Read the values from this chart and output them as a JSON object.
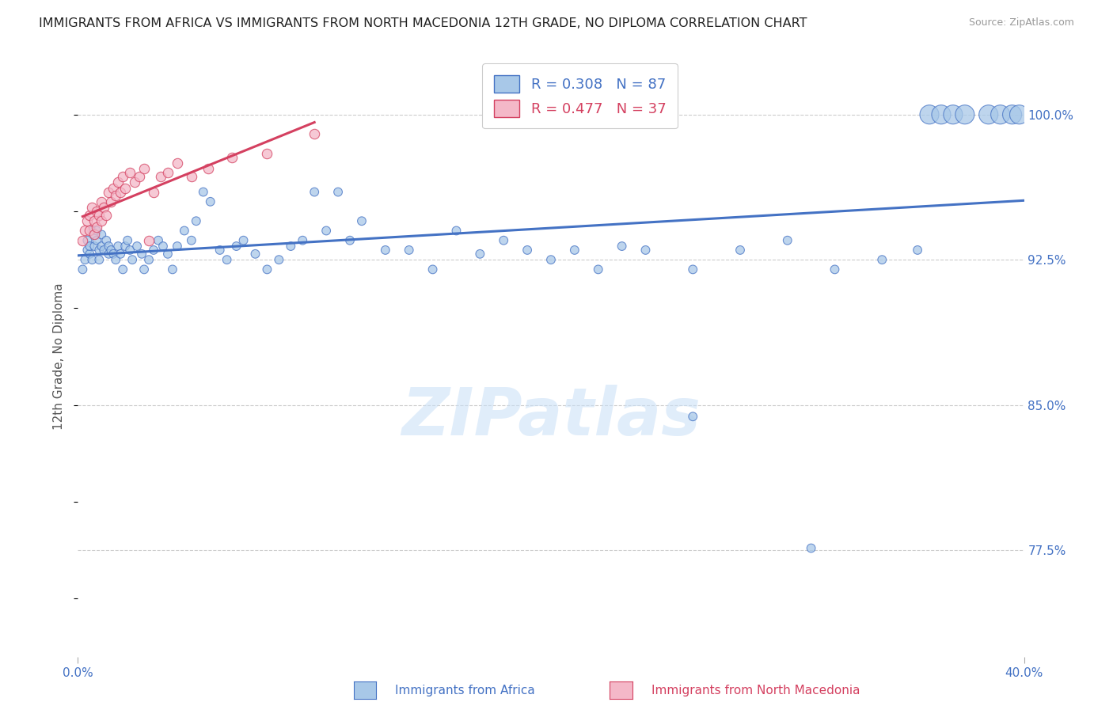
{
  "title": "IMMIGRANTS FROM AFRICA VS IMMIGRANTS FROM NORTH MACEDONIA 12TH GRADE, NO DIPLOMA CORRELATION CHART",
  "source": "Source: ZipAtlas.com",
  "ylabel": "12th Grade, No Diploma",
  "ytick_labels": [
    "100.0%",
    "92.5%",
    "85.0%",
    "77.5%"
  ],
  "ytick_values": [
    1.0,
    0.925,
    0.85,
    0.775
  ],
  "xlim": [
    0.0,
    0.4
  ],
  "ylim": [
    0.72,
    1.03
  ],
  "africa_R": 0.308,
  "africa_N": 87,
  "macedonia_R": 0.477,
  "macedonia_N": 37,
  "africa_color": "#a8c8e8",
  "africa_edge_color": "#4472c4",
  "macedonia_color": "#f4b8c8",
  "macedonia_edge_color": "#d44060",
  "africa_line_color": "#4472c4",
  "macedonia_line_color": "#d44060",
  "africa_x": [
    0.002,
    0.003,
    0.004,
    0.004,
    0.005,
    0.005,
    0.006,
    0.006,
    0.007,
    0.007,
    0.008,
    0.008,
    0.009,
    0.009,
    0.01,
    0.01,
    0.011,
    0.012,
    0.013,
    0.013,
    0.014,
    0.015,
    0.016,
    0.017,
    0.018,
    0.019,
    0.02,
    0.021,
    0.022,
    0.023,
    0.025,
    0.027,
    0.028,
    0.03,
    0.032,
    0.034,
    0.036,
    0.038,
    0.04,
    0.042,
    0.045,
    0.048,
    0.05,
    0.053,
    0.056,
    0.06,
    0.063,
    0.067,
    0.07,
    0.075,
    0.08,
    0.085,
    0.09,
    0.095,
    0.1,
    0.105,
    0.11,
    0.115,
    0.12,
    0.13,
    0.14,
    0.15,
    0.16,
    0.17,
    0.18,
    0.19,
    0.2,
    0.21,
    0.22,
    0.23,
    0.24,
    0.26,
    0.28,
    0.3,
    0.32,
    0.34,
    0.355,
    0.36,
    0.365,
    0.37,
    0.375,
    0.385,
    0.39,
    0.395,
    0.398,
    0.26,
    0.31
  ],
  "africa_y": [
    0.92,
    0.925,
    0.93,
    0.935,
    0.928,
    0.932,
    0.925,
    0.94,
    0.932,
    0.938,
    0.935,
    0.94,
    0.93,
    0.925,
    0.938,
    0.932,
    0.93,
    0.935,
    0.932,
    0.928,
    0.93,
    0.928,
    0.925,
    0.932,
    0.928,
    0.92,
    0.932,
    0.935,
    0.93,
    0.925,
    0.932,
    0.928,
    0.92,
    0.925,
    0.93,
    0.935,
    0.932,
    0.928,
    0.92,
    0.932,
    0.94,
    0.935,
    0.945,
    0.96,
    0.955,
    0.93,
    0.925,
    0.932,
    0.935,
    0.928,
    0.92,
    0.925,
    0.932,
    0.935,
    0.96,
    0.94,
    0.96,
    0.935,
    0.945,
    0.93,
    0.93,
    0.92,
    0.94,
    0.928,
    0.935,
    0.93,
    0.925,
    0.93,
    0.92,
    0.932,
    0.93,
    0.92,
    0.93,
    0.935,
    0.92,
    0.925,
    0.93,
    1.0,
    1.0,
    1.0,
    1.0,
    1.0,
    1.0,
    1.0,
    1.0,
    0.844,
    0.776
  ],
  "africa_size": [
    60,
    60,
    60,
    60,
    60,
    60,
    60,
    60,
    60,
    60,
    60,
    60,
    60,
    60,
    60,
    60,
    60,
    60,
    60,
    60,
    60,
    60,
    60,
    60,
    60,
    60,
    60,
    60,
    60,
    60,
    60,
    60,
    60,
    60,
    60,
    60,
    60,
    60,
    60,
    60,
    60,
    60,
    60,
    60,
    60,
    60,
    60,
    60,
    60,
    60,
    60,
    60,
    60,
    60,
    60,
    60,
    60,
    60,
    60,
    60,
    60,
    60,
    60,
    60,
    60,
    60,
    60,
    60,
    60,
    60,
    60,
    60,
    60,
    60,
    60,
    60,
    60,
    300,
    300,
    300,
    300,
    300,
    300,
    300,
    300,
    60,
    60
  ],
  "macedonia_x": [
    0.002,
    0.003,
    0.004,
    0.005,
    0.005,
    0.006,
    0.007,
    0.007,
    0.008,
    0.008,
    0.009,
    0.01,
    0.01,
    0.011,
    0.012,
    0.013,
    0.014,
    0.015,
    0.016,
    0.017,
    0.018,
    0.019,
    0.02,
    0.022,
    0.024,
    0.026,
    0.028,
    0.03,
    0.032,
    0.035,
    0.038,
    0.042,
    0.048,
    0.055,
    0.065,
    0.08,
    0.1
  ],
  "macedonia_y": [
    0.935,
    0.94,
    0.945,
    0.94,
    0.948,
    0.952,
    0.938,
    0.945,
    0.942,
    0.95,
    0.948,
    0.955,
    0.945,
    0.952,
    0.948,
    0.96,
    0.955,
    0.962,
    0.958,
    0.965,
    0.96,
    0.968,
    0.962,
    0.97,
    0.965,
    0.968,
    0.972,
    0.935,
    0.96,
    0.968,
    0.97,
    0.975,
    0.968,
    0.972,
    0.978,
    0.98,
    0.99
  ],
  "watermark": "ZIPatlas",
  "grid_color": "#cccccc",
  "background_color": "#ffffff",
  "tick_color": "#4472c4",
  "title_fontsize": 11.5,
  "source_fontsize": 9
}
